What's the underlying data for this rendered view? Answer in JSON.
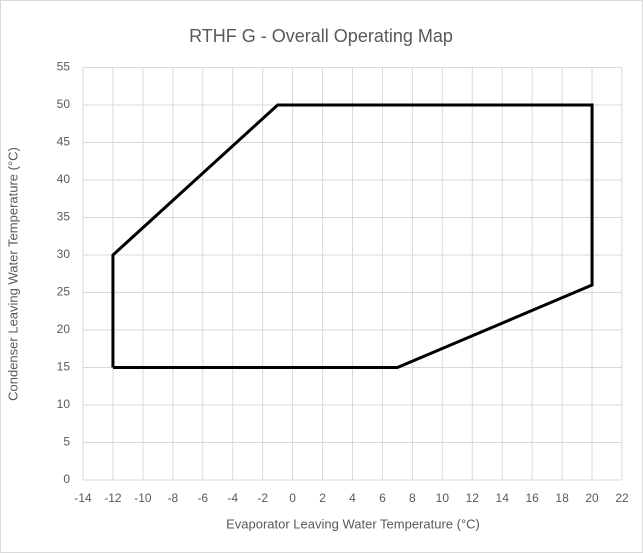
{
  "chart_data": {
    "type": "line",
    "title": "RTHF G - Overall Operating Map",
    "x_label": "Evaporator Leaving Water Temperature (°C)",
    "y_label": "Condenser Leaving Water Temperature (°C)",
    "x": [
      -12,
      -12,
      -1,
      20,
      20,
      7,
      -12
    ],
    "series": [
      {
        "color": "#000000",
        "values": [
          15,
          30,
          50,
          50,
          26,
          15,
          15
        ]
      }
    ],
    "xlim": [
      -14,
      22
    ],
    "xticks": [
      -14,
      -12,
      -10,
      -8,
      -6,
      -4,
      -2,
      0,
      2,
      4,
      6,
      8,
      10,
      12,
      14,
      16,
      18,
      20,
      22
    ],
    "ylim": [
      0,
      55
    ],
    "yticks": [
      0,
      5,
      10,
      15,
      20,
      25,
      30,
      35,
      40,
      45,
      50,
      55
    ],
    "grid": true
  }
}
